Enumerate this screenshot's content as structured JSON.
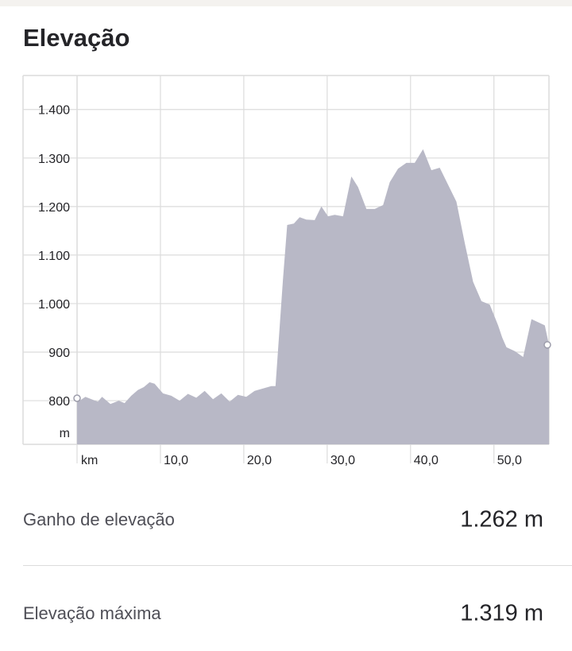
{
  "title": "Elevação",
  "stats": [
    {
      "label": "Ganho de elevação",
      "value": "1.262 m"
    },
    {
      "label": "Elevação máxima",
      "value": "1.319 m"
    }
  ],
  "colors": {
    "fill": "#b8b8c6",
    "grid": "#dcdcdc",
    "text": "#242428",
    "label": "#4f4f57"
  },
  "chart_data": {
    "type": "area",
    "y_unit": "m",
    "x_unit": "km",
    "y_ticks": [
      "800",
      "900",
      "1.000",
      "1.100",
      "1.200",
      "1.300",
      "1.400"
    ],
    "y_tick_values": [
      800,
      900,
      1000,
      1100,
      1200,
      1300,
      1400
    ],
    "x_ticks": [
      "10,0",
      "20,0",
      "30,0",
      "40,0",
      "50,0"
    ],
    "x_tick_values": [
      10,
      20,
      30,
      40,
      50
    ],
    "xlim": [
      0,
      56.6
    ],
    "ylim": [
      710,
      1470
    ],
    "grid": true,
    "x": [
      0,
      0.3,
      1,
      2,
      2.5,
      3,
      4,
      5,
      5.7,
      6.5,
      7.3,
      8,
      8.7,
      9.3,
      10.3,
      11.3,
      12.3,
      13.3,
      14.3,
      15.3,
      16.3,
      17.3,
      18.3,
      19.3,
      20.3,
      21.3,
      22.3,
      23.3,
      23.8,
      24.7,
      25.2,
      26,
      26.7,
      27.5,
      28.5,
      29.3,
      30.1,
      30.9,
      31.9,
      32.9,
      33.7,
      34.7,
      35.7,
      36.7,
      37.5,
      38.5,
      39.5,
      40.5,
      41.5,
      42.5,
      43.5,
      44.5,
      45.5,
      46.5,
      47.5,
      48.5,
      49.5,
      50.5,
      51,
      51.5,
      52.5,
      53.5,
      54.5,
      55.5,
      56.1,
      56.6
    ],
    "y": [
      805,
      800,
      808,
      801,
      798,
      808,
      793,
      800,
      795,
      810,
      822,
      828,
      838,
      835,
      815,
      810,
      800,
      814,
      806,
      820,
      803,
      815,
      798,
      812,
      808,
      820,
      825,
      830,
      830,
      1050,
      1162,
      1165,
      1178,
      1173,
      1172,
      1200,
      1180,
      1183,
      1180,
      1262,
      1240,
      1195,
      1195,
      1203,
      1250,
      1278,
      1290,
      1290,
      1318,
      1275,
      1280,
      1245,
      1210,
      1125,
      1045,
      1005,
      998,
      955,
      930,
      910,
      902,
      890,
      968,
      960,
      955,
      915
    ]
  }
}
